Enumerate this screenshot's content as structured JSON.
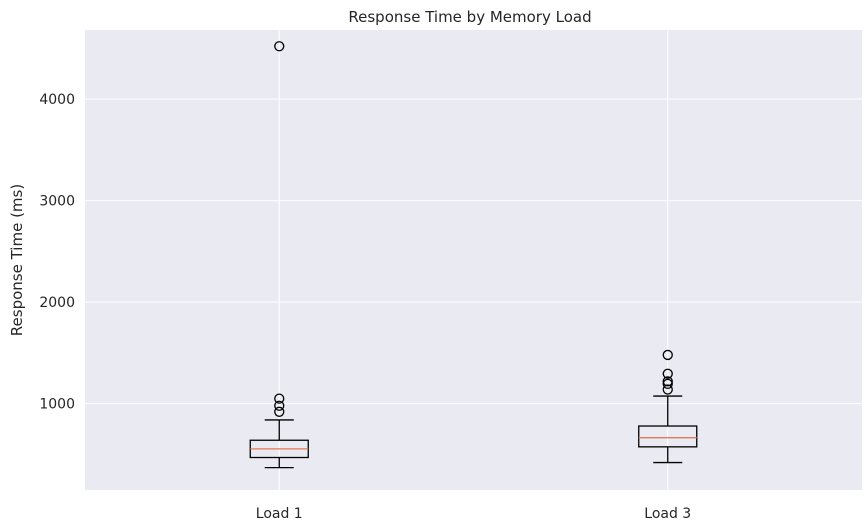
{
  "chart_data": {
    "type": "box",
    "title": "Response Time by Memory Load",
    "xlabel": "",
    "ylabel": "Response Time (ms)",
    "categories": [
      "Load 1",
      "Load 3"
    ],
    "ylim": [
      150,
      4680
    ],
    "yticks": [
      1000,
      2000,
      3000,
      4000
    ],
    "grid": true,
    "boxes": [
      {
        "label": "Load 1",
        "whisker_low": 370,
        "q1": 470,
        "median": 555,
        "q3": 640,
        "whisker_high": 840,
        "outliers": [
          920,
          980,
          1050,
          4520
        ]
      },
      {
        "label": "Load 3",
        "whisker_low": 420,
        "q1": 575,
        "median": 665,
        "q3": 780,
        "whisker_high": 1075,
        "outliers": [
          1140,
          1195,
          1220,
          1295,
          1480
        ]
      }
    ],
    "colors": {
      "background": "#eaeaf2",
      "grid": "#ffffff",
      "box": "#000000",
      "median": "#e07b53"
    }
  }
}
